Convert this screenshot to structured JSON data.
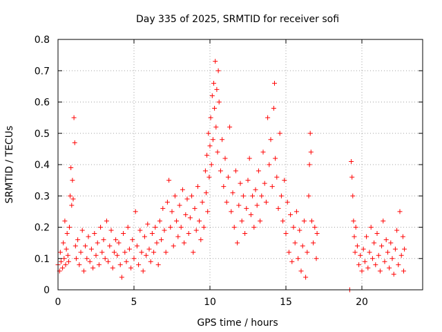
{
  "chart_data": {
    "type": "scatter",
    "title": "Day 335 of 2025, SRMTID for receiver sofi",
    "xlabel": "GPS time / hours",
    "ylabel": "SRMTID / TECUs",
    "xlim": [
      0,
      24
    ],
    "ylim": [
      0,
      0.8
    ],
    "x_ticks": [
      0,
      5,
      10,
      15,
      20
    ],
    "y_ticks": [
      0,
      0.1,
      0.2,
      0.3,
      0.4,
      0.5,
      0.6,
      0.7,
      0.8
    ],
    "x_tick_labels": [
      "0",
      "5",
      "10",
      "15",
      "20"
    ],
    "y_tick_labels": [
      "0",
      "0.1",
      "0.2",
      "0.3",
      "0.4",
      "0.5",
      "0.6",
      "0.7",
      "0.8"
    ],
    "grid": true,
    "marker": "+",
    "color": "#ff0000",
    "series": [
      {
        "name": "SRMTID",
        "points": [
          [
            0.0,
            0.08
          ],
          [
            0.1,
            0.06
          ],
          [
            0.15,
            0.12
          ],
          [
            0.2,
            0.09
          ],
          [
            0.3,
            0.07
          ],
          [
            0.35,
            0.15
          ],
          [
            0.4,
            0.1
          ],
          [
            0.45,
            0.22
          ],
          [
            0.5,
            0.08
          ],
          [
            0.55,
            0.13
          ],
          [
            0.6,
            0.18
          ],
          [
            0.65,
            0.11
          ],
          [
            0.7,
            0.09
          ],
          [
            0.75,
            0.2
          ],
          [
            0.8,
            0.3
          ],
          [
            0.85,
            0.39
          ],
          [
            0.9,
            0.27
          ],
          [
            0.95,
            0.35
          ],
          [
            1.0,
            0.29
          ],
          [
            1.05,
            0.55
          ],
          [
            1.1,
            0.47
          ],
          [
            1.15,
            0.14
          ],
          [
            1.2,
            0.1
          ],
          [
            1.3,
            0.16
          ],
          [
            1.4,
            0.08
          ],
          [
            1.5,
            0.12
          ],
          [
            1.6,
            0.19
          ],
          [
            1.7,
            0.06
          ],
          [
            1.8,
            0.14
          ],
          [
            1.9,
            0.1
          ],
          [
            2.0,
            0.17
          ],
          [
            2.1,
            0.09
          ],
          [
            2.2,
            0.13
          ],
          [
            2.3,
            0.07
          ],
          [
            2.4,
            0.18
          ],
          [
            2.5,
            0.11
          ],
          [
            2.6,
            0.15
          ],
          [
            2.7,
            0.08
          ],
          [
            2.8,
            0.2
          ],
          [
            2.9,
            0.12
          ],
          [
            3.0,
            0.16
          ],
          [
            3.1,
            0.1
          ],
          [
            3.2,
            0.22
          ],
          [
            3.3,
            0.09
          ],
          [
            3.4,
            0.14
          ],
          [
            3.5,
            0.19
          ],
          [
            3.6,
            0.07
          ],
          [
            3.7,
            0.12
          ],
          [
            3.8,
            0.16
          ],
          [
            3.9,
            0.11
          ],
          [
            4.0,
            0.15
          ],
          [
            4.1,
            0.08
          ],
          [
            4.2,
            0.04
          ],
          [
            4.3,
            0.18
          ],
          [
            4.4,
            0.12
          ],
          [
            4.5,
            0.09
          ],
          [
            4.6,
            0.2
          ],
          [
            4.7,
            0.13
          ],
          [
            4.8,
            0.07
          ],
          [
            4.9,
            0.16
          ],
          [
            5.0,
            0.1
          ],
          [
            5.1,
            0.25
          ],
          [
            5.2,
            0.14
          ],
          [
            5.3,
            0.08
          ],
          [
            5.4,
            0.19
          ],
          [
            5.5,
            0.12
          ],
          [
            5.6,
            0.06
          ],
          [
            5.7,
            0.17
          ],
          [
            5.8,
            0.11
          ],
          [
            5.9,
            0.21
          ],
          [
            6.0,
            0.13
          ],
          [
            6.1,
            0.09
          ],
          [
            6.2,
            0.18
          ],
          [
            6.3,
            0.12
          ],
          [
            6.4,
            0.2
          ],
          [
            6.5,
            0.15
          ],
          [
            6.6,
            0.08
          ],
          [
            6.7,
            0.22
          ],
          [
            6.8,
            0.16
          ],
          [
            6.9,
            0.26
          ],
          [
            7.0,
            0.19
          ],
          [
            7.1,
            0.12
          ],
          [
            7.2,
            0.28
          ],
          [
            7.3,
            0.35
          ],
          [
            7.4,
            0.2
          ],
          [
            7.5,
            0.25
          ],
          [
            7.6,
            0.14
          ],
          [
            7.7,
            0.3
          ],
          [
            7.8,
            0.22
          ],
          [
            7.9,
            0.17
          ],
          [
            8.0,
            0.27
          ],
          [
            8.1,
            0.2
          ],
          [
            8.2,
            0.32
          ],
          [
            8.3,
            0.15
          ],
          [
            8.4,
            0.24
          ],
          [
            8.5,
            0.29
          ],
          [
            8.6,
            0.18
          ],
          [
            8.7,
            0.23
          ],
          [
            8.8,
            0.3
          ],
          [
            8.9,
            0.12
          ],
          [
            9.0,
            0.26
          ],
          [
            9.1,
            0.19
          ],
          [
            9.2,
            0.33
          ],
          [
            9.3,
            0.22
          ],
          [
            9.4,
            0.16
          ],
          [
            9.5,
            0.28
          ],
          [
            9.6,
            0.2
          ],
          [
            9.7,
            0.38
          ],
          [
            9.75,
            0.31
          ],
          [
            9.8,
            0.43
          ],
          [
            9.85,
            0.25
          ],
          [
            9.9,
            0.5
          ],
          [
            9.95,
            0.36
          ],
          [
            10.0,
            0.46
          ],
          [
            10.05,
            0.55
          ],
          [
            10.1,
            0.4
          ],
          [
            10.15,
            0.62
          ],
          [
            10.2,
            0.48
          ],
          [
            10.25,
            0.66
          ],
          [
            10.3,
            0.58
          ],
          [
            10.35,
            0.73
          ],
          [
            10.4,
            0.52
          ],
          [
            10.45,
            0.64
          ],
          [
            10.5,
            0.44
          ],
          [
            10.55,
            0.7
          ],
          [
            10.6,
            0.6
          ],
          [
            10.7,
            0.38
          ],
          [
            10.8,
            0.48
          ],
          [
            10.9,
            0.33
          ],
          [
            11.0,
            0.42
          ],
          [
            11.1,
            0.28
          ],
          [
            11.2,
            0.36
          ],
          [
            11.3,
            0.52
          ],
          [
            11.4,
            0.25
          ],
          [
            11.5,
            0.31
          ],
          [
            11.6,
            0.2
          ],
          [
            11.7,
            0.38
          ],
          [
            11.8,
            0.15
          ],
          [
            11.9,
            0.27
          ],
          [
            12.0,
            0.34
          ],
          [
            12.1,
            0.22
          ],
          [
            12.2,
            0.3
          ],
          [
            12.3,
            0.18
          ],
          [
            12.4,
            0.26
          ],
          [
            12.5,
            0.35
          ],
          [
            12.6,
            0.42
          ],
          [
            12.7,
            0.24
          ],
          [
            12.8,
            0.3
          ],
          [
            12.9,
            0.2
          ],
          [
            13.0,
            0.32
          ],
          [
            13.1,
            0.27
          ],
          [
            13.2,
            0.38
          ],
          [
            13.3,
            0.22
          ],
          [
            13.4,
            0.3
          ],
          [
            13.5,
            0.44
          ],
          [
            13.6,
            0.34
          ],
          [
            13.7,
            0.28
          ],
          [
            13.8,
            0.55
          ],
          [
            13.9,
            0.4
          ],
          [
            14.0,
            0.48
          ],
          [
            14.1,
            0.33
          ],
          [
            14.2,
            0.58
          ],
          [
            14.25,
            0.66
          ],
          [
            14.3,
            0.42
          ],
          [
            14.4,
            0.36
          ],
          [
            14.5,
            0.26
          ],
          [
            14.6,
            0.5
          ],
          [
            14.7,
            0.3
          ],
          [
            14.8,
            0.22
          ],
          [
            14.9,
            0.35
          ],
          [
            15.0,
            0.18
          ],
          [
            15.1,
            0.28
          ],
          [
            15.2,
            0.12
          ],
          [
            15.3,
            0.24
          ],
          [
            15.4,
            0.09
          ],
          [
            15.5,
            0.2
          ],
          [
            15.6,
            0.15
          ],
          [
            15.7,
            0.25
          ],
          [
            15.8,
            0.1
          ],
          [
            15.9,
            0.19
          ],
          [
            16.0,
            0.06
          ],
          [
            16.1,
            0.14
          ],
          [
            16.2,
            0.22
          ],
          [
            16.3,
            0.04
          ],
          [
            16.4,
            0.12
          ],
          [
            16.5,
            0.3
          ],
          [
            16.55,
            0.4
          ],
          [
            16.6,
            0.5
          ],
          [
            16.65,
            0.44
          ],
          [
            16.7,
            0.22
          ],
          [
            16.8,
            0.15
          ],
          [
            16.9,
            0.2
          ],
          [
            17.0,
            0.1
          ],
          [
            17.05,
            0.18
          ],
          [
            19.2,
            0.0
          ],
          [
            19.3,
            0.41
          ],
          [
            19.35,
            0.36
          ],
          [
            19.4,
            0.3
          ],
          [
            19.45,
            0.22
          ],
          [
            19.5,
            0.17
          ],
          [
            19.55,
            0.12
          ],
          [
            19.6,
            0.2
          ],
          [
            19.7,
            0.14
          ],
          [
            19.8,
            0.08
          ],
          [
            19.9,
            0.11
          ],
          [
            20.0,
            0.06
          ],
          [
            20.1,
            0.13
          ],
          [
            20.2,
            0.09
          ],
          [
            20.3,
            0.17
          ],
          [
            20.4,
            0.07
          ],
          [
            20.5,
            0.12
          ],
          [
            20.6,
            0.2
          ],
          [
            20.7,
            0.1
          ],
          [
            20.8,
            0.15
          ],
          [
            20.9,
            0.08
          ],
          [
            21.0,
            0.18
          ],
          [
            21.1,
            0.11
          ],
          [
            21.2,
            0.06
          ],
          [
            21.3,
            0.14
          ],
          [
            21.4,
            0.22
          ],
          [
            21.5,
            0.09
          ],
          [
            21.6,
            0.16
          ],
          [
            21.7,
            0.12
          ],
          [
            21.8,
            0.07
          ],
          [
            21.9,
            0.15
          ],
          [
            22.0,
            0.1
          ],
          [
            22.1,
            0.05
          ],
          [
            22.2,
            0.13
          ],
          [
            22.3,
            0.19
          ],
          [
            22.4,
            0.08
          ],
          [
            22.5,
            0.25
          ],
          [
            22.6,
            0.11
          ],
          [
            22.7,
            0.17
          ],
          [
            22.75,
            0.06
          ],
          [
            22.8,
            0.13
          ]
        ]
      }
    ]
  }
}
